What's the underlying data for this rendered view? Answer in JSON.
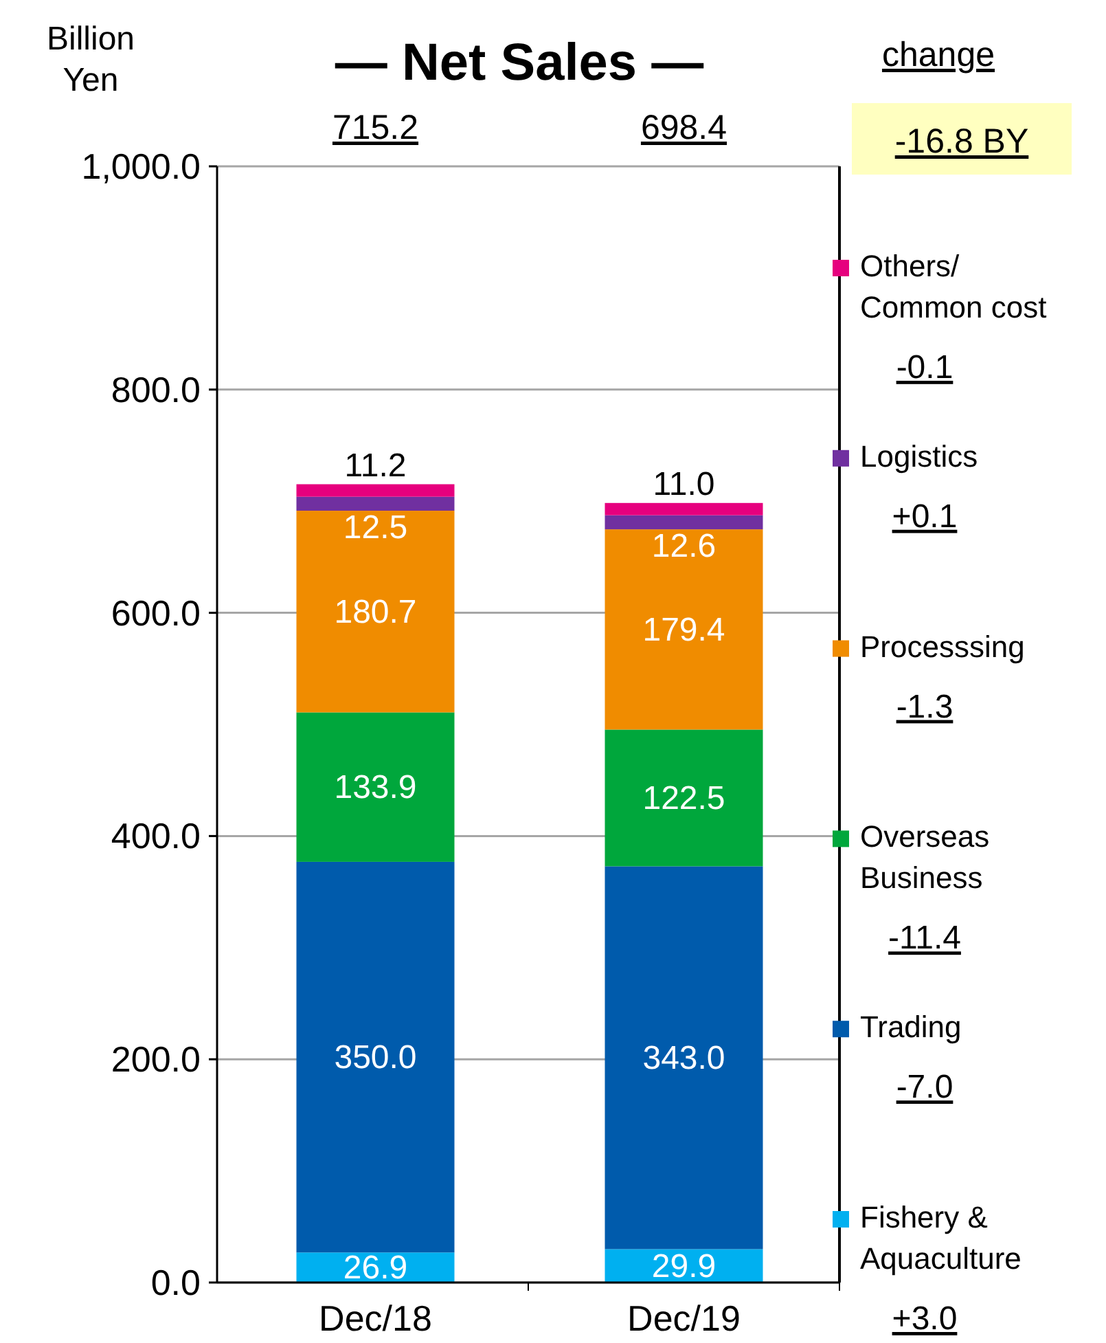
{
  "chart_data": {
    "type": "bar",
    "title": "— Net Sales —",
    "ylabel": "Billion Yen",
    "stacked": true,
    "categories": [
      "Dec/18",
      "Dec/19"
    ],
    "series": [
      {
        "name": "Fishery & Aquaculture",
        "color": "#00b0f0",
        "values": [
          26.9,
          29.9
        ],
        "value_labels": [
          "26.9",
          "29.9"
        ]
      },
      {
        "name": "Trading",
        "color": "#005bac",
        "values": [
          350.0,
          343.0
        ],
        "value_labels": [
          "350.0",
          "343.0"
        ]
      },
      {
        "name": "Overseas Business",
        "color": "#00a73c",
        "values": [
          133.9,
          122.5
        ],
        "value_labels": [
          "133.9",
          "122.5"
        ]
      },
      {
        "name": "Processsing",
        "color": "#f08c00",
        "values": [
          180.7,
          179.4
        ],
        "value_labels": [
          "180.7",
          "179.4"
        ]
      },
      {
        "name": "Logistics",
        "color": "#7030a0",
        "values": [
          12.5,
          12.6
        ],
        "value_labels": [
          "12.5",
          "12.6"
        ]
      },
      {
        "name": "Others/ Common cost",
        "color": "#e6007e",
        "values": [
          11.2,
          11.0
        ],
        "value_labels": [
          "11.2",
          "11.0"
        ]
      }
    ],
    "ylim": [
      0,
      1000
    ],
    "yticks": [
      {
        "value": 0,
        "label": "0.0"
      },
      {
        "value": 200,
        "label": "200.0"
      },
      {
        "value": 400,
        "label": "400.0"
      },
      {
        "value": 600,
        "label": "600.0"
      },
      {
        "value": 800,
        "label": "800.0"
      },
      {
        "value": 1000,
        "label": "1,000.0"
      }
    ],
    "grid": "y",
    "legend": "right",
    "annotations": [
      "715.2",
      "698.4",
      "change",
      "-16.8 BY",
      "+3.0",
      "-7.0",
      "-11.4",
      "-1.3",
      "+0.1",
      "-0.1"
    ]
  }
}
